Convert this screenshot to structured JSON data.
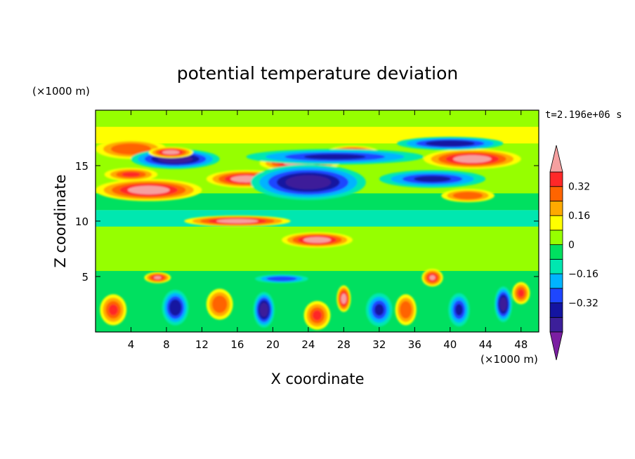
{
  "chart_data": {
    "type": "heatmap",
    "title": "potential temperature deviation",
    "xlabel": "X coordinate",
    "ylabel": "Z coordinate",
    "x_unit": "(×1000 m)",
    "y_unit": "(×1000 m)",
    "time_label": "t=2.196e+06 s",
    "xlim": [
      0,
      50
    ],
    "ylim": [
      0,
      20
    ],
    "x_ticks": [
      4,
      8,
      12,
      16,
      20,
      24,
      28,
      32,
      36,
      40,
      44,
      48
    ],
    "x_tick_labels": [
      "4",
      "8",
      "12",
      "16",
      "20",
      "24",
      "28",
      "32",
      "36",
      "40",
      "44",
      "48"
    ],
    "y_ticks": [
      5,
      10,
      15
    ],
    "y_tick_labels": [
      "5",
      "10",
      "15"
    ],
    "colorbar": {
      "levels": [
        -0.48,
        -0.4,
        -0.32,
        -0.24,
        -0.16,
        -0.08,
        0,
        0.08,
        0.16,
        0.24,
        0.32,
        0.4
      ],
      "colors": [
        "#7b1fa2",
        "#3c1f99",
        "#1414a0",
        "#1e46ff",
        "#00b4ff",
        "#00e7b0",
        "#00e060",
        "#96ff00",
        "#ffff00",
        "#ffaa00",
        "#ff6400",
        "#ff2828",
        "#f5a0a0"
      ],
      "tick_values": [
        -0.32,
        -0.16,
        0,
        0.16,
        0.32
      ],
      "tick_labels": [
        "−0.32",
        "−0.16",
        "0",
        "0.16",
        "0.32"
      ]
    },
    "background_band_levels": [
      {
        "z_range": [
          18.5,
          20
        ],
        "value": 0.0
      },
      {
        "z_range": [
          17.0,
          18.5
        ],
        "value": 0.1
      },
      {
        "z_range": [
          11.0,
          12.5
        ],
        "value": -0.05
      },
      {
        "z_range": [
          9.5,
          11.0
        ],
        "value": -0.12
      },
      {
        "z_range": [
          5.5,
          9.5
        ],
        "value": 0.0
      },
      {
        "z_range": [
          0,
          5.5
        ],
        "value": -0.05
      }
    ],
    "features": [
      {
        "x": 4,
        "z": 16.5,
        "value": 0.3,
        "sx": 4,
        "sz": 0.9
      },
      {
        "x": 9,
        "z": 15.6,
        "value": -0.45,
        "sx": 5,
        "sz": 0.9
      },
      {
        "x": 8.5,
        "z": 16.2,
        "value": 0.45,
        "sx": 2.5,
        "sz": 0.5
      },
      {
        "x": 6,
        "z": 12.8,
        "value": 0.45,
        "sx": 6,
        "sz": 1.0
      },
      {
        "x": 4,
        "z": 14.2,
        "value": 0.35,
        "sx": 3,
        "sz": 0.6
      },
      {
        "x": 17,
        "z": 13.8,
        "value": 0.45,
        "sx": 4.5,
        "sz": 0.8
      },
      {
        "x": 23,
        "z": 15.2,
        "value": 0.45,
        "sx": 4.5,
        "sz": 0.7
      },
      {
        "x": 24,
        "z": 13.5,
        "value": -0.45,
        "sx": 6.5,
        "sz": 1.6
      },
      {
        "x": 29,
        "z": 16.2,
        "value": 0.45,
        "sx": 3,
        "sz": 0.6
      },
      {
        "x": 27,
        "z": 15.8,
        "value": -0.35,
        "sx": 10,
        "sz": 0.7
      },
      {
        "x": 42.5,
        "z": 15.6,
        "value": 0.45,
        "sx": 5.5,
        "sz": 0.9
      },
      {
        "x": 40,
        "z": 17.0,
        "value": -0.4,
        "sx": 6,
        "sz": 0.6
      },
      {
        "x": 38,
        "z": 13.8,
        "value": -0.35,
        "sx": 6,
        "sz": 0.8
      },
      {
        "x": 42,
        "z": 12.3,
        "value": 0.3,
        "sx": 3,
        "sz": 0.6
      },
      {
        "x": 16,
        "z": 10.0,
        "value": 0.45,
        "sx": 6,
        "sz": 0.5
      },
      {
        "x": 25,
        "z": 8.3,
        "value": 0.45,
        "sx": 4,
        "sz": 0.7
      },
      {
        "x": 21,
        "z": 4.8,
        "value": -0.3,
        "sx": 3,
        "sz": 0.4
      },
      {
        "x": 7,
        "z": 4.9,
        "value": 0.4,
        "sx": 1.5,
        "sz": 0.5
      },
      {
        "x": 38,
        "z": 4.9,
        "value": 0.4,
        "sx": 1.2,
        "sz": 0.8
      },
      {
        "x": 2,
        "z": 2.0,
        "value": 0.35,
        "sx": 1.5,
        "sz": 1.4
      },
      {
        "x": 9,
        "z": 2.2,
        "value": -0.4,
        "sx": 1.5,
        "sz": 1.6
      },
      {
        "x": 14,
        "z": 2.5,
        "value": 0.3,
        "sx": 1.5,
        "sz": 1.4
      },
      {
        "x": 19,
        "z": 2.0,
        "value": -0.45,
        "sx": 1.2,
        "sz": 1.6
      },
      {
        "x": 25,
        "z": 1.5,
        "value": 0.35,
        "sx": 1.5,
        "sz": 1.3
      },
      {
        "x": 28,
        "z": 3.0,
        "value": 0.45,
        "sx": 0.8,
        "sz": 1.2
      },
      {
        "x": 32,
        "z": 2.0,
        "value": -0.35,
        "sx": 1.5,
        "sz": 1.5
      },
      {
        "x": 35,
        "z": 2.0,
        "value": 0.3,
        "sx": 1.2,
        "sz": 1.4
      },
      {
        "x": 41,
        "z": 2.0,
        "value": -0.35,
        "sx": 1.2,
        "sz": 1.5
      },
      {
        "x": 46,
        "z": 2.5,
        "value": -0.45,
        "sx": 1.0,
        "sz": 1.6
      },
      {
        "x": 48,
        "z": 3.5,
        "value": 0.35,
        "sx": 1.0,
        "sz": 1.0
      }
    ]
  }
}
